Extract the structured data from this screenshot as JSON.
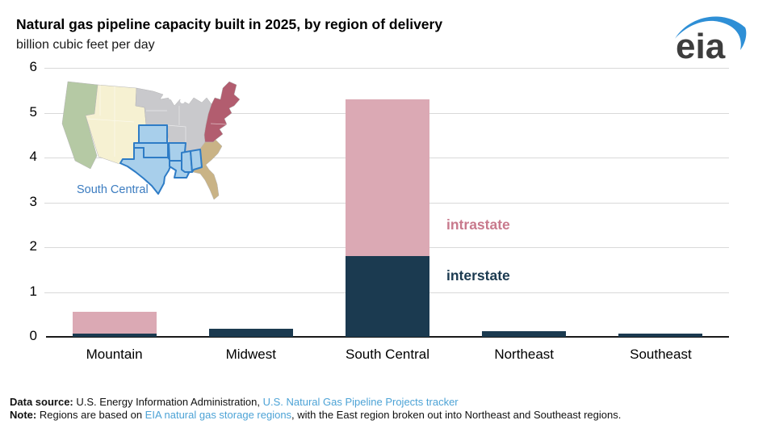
{
  "header": {
    "title": "Natural gas pipeline capacity built in 2025, by region of delivery",
    "subtitle": "billion cubic feet per day"
  },
  "logo": {
    "text": "eia",
    "swoosh_color": "#2e8fd6",
    "text_color": "#3d3d3d"
  },
  "chart_data": {
    "type": "bar",
    "stacked": true,
    "title": "Natural gas pipeline capacity built in 2025, by region of delivery",
    "ylabel": "billion cubic feet per day",
    "xlabel": "",
    "categories": [
      "Mountain",
      "Midwest",
      "South Central",
      "Northeast",
      "Southeast"
    ],
    "series": [
      {
        "name": "interstate",
        "color": "#1b3a50",
        "values": [
          0.08,
          0.18,
          1.8,
          0.13,
          0.07
        ]
      },
      {
        "name": "intrastate",
        "color": "#dba9b4",
        "values": [
          0.47,
          0,
          3.5,
          0,
          0
        ]
      }
    ],
    "ylim": [
      0,
      6
    ],
    "yticks": [
      0,
      1,
      2,
      3,
      4,
      5,
      6
    ],
    "grid": true,
    "legend_position": "inline-annotations",
    "annotations": [
      {
        "text": "intrastate",
        "color": "#c8798c"
      },
      {
        "text": "interstate",
        "color": "#1b3a50"
      }
    ]
  },
  "map": {
    "label": "South Central",
    "label_color": "#3b7cc0",
    "region_colors": {
      "pacific": "#b5c9a4",
      "mountain": "#f6f1d2",
      "midwest": "#c9c9cc",
      "south_central_fill": "#a8cfeb",
      "south_central_border": "#2e7cc6",
      "northeast": "#b25d6f",
      "southeast": "#c9b386"
    },
    "regions": [
      "pacific",
      "mountain",
      "midwest",
      "south_central",
      "northeast",
      "southeast"
    ]
  },
  "footer": {
    "line1": [
      {
        "text": "Data source: ",
        "style": "b"
      },
      {
        "text": "U.S. Energy Information Administration, ",
        "style": "plain"
      },
      {
        "text": "U.S. Natural Gas Pipeline Projects tracker",
        "style": "link"
      }
    ],
    "line2": [
      {
        "text": "Note: ",
        "style": "b"
      },
      {
        "text": "Regions are based on ",
        "style": "plain"
      },
      {
        "text": "EIA natural gas storage regions",
        "style": "link"
      },
      {
        "text": ", with the East region broken out into Northeast and Southeast regions.",
        "style": "plain"
      }
    ]
  }
}
